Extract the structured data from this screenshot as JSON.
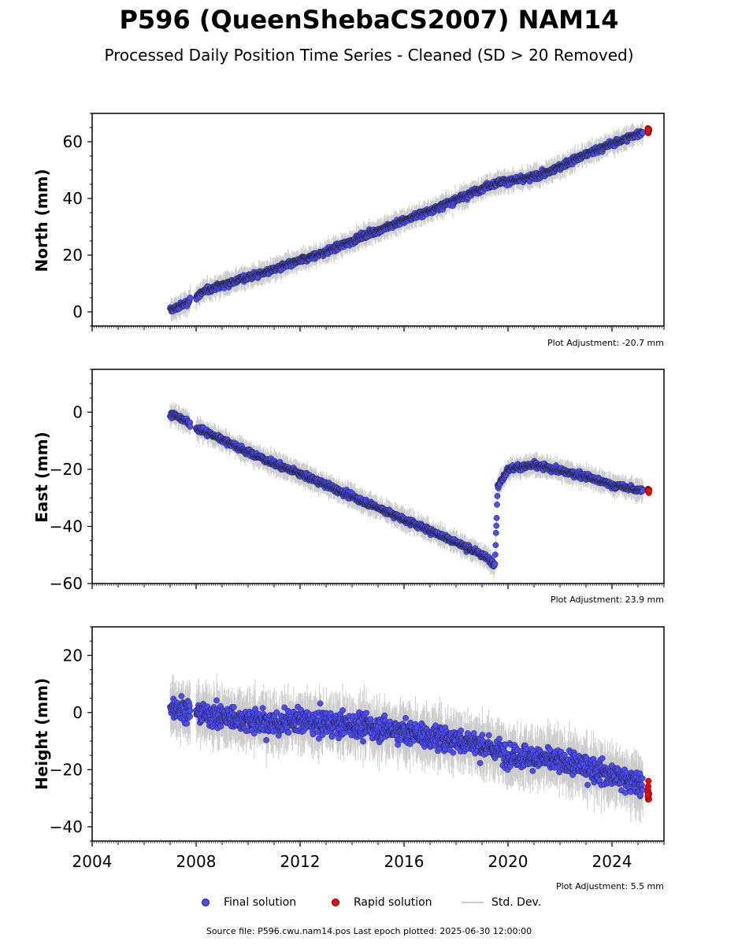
{
  "title": "P596 (QueenShebaCS2007) NAM14",
  "subtitle": "Processed Daily Position Time Series - Cleaned (SD > 20 Removed)",
  "legend": {
    "final": "Final solution",
    "rapid": "Rapid solution",
    "std": "Std. Dev."
  },
  "footer": "Source file: P596.cwu.nam14.pos  Last epoch plotted: 2025-06-30 12:00:00",
  "colors": {
    "final": "#4b4bff",
    "rapid": "#ff0000",
    "std": "#cccccc"
  },
  "chart_data": [
    {
      "type": "scatter",
      "ylabel": "North (mm)",
      "xlim": [
        2004,
        2026
      ],
      "ylim": [
        -5,
        70
      ],
      "yticks": [
        0,
        20,
        40,
        60
      ],
      "adjustment": "Plot Adjustment: -20.7 mm",
      "series": [
        {
          "name": "Final solution",
          "x": [
            2007.0,
            2007.5,
            2008.0,
            2008.5,
            2009.5,
            2010.5,
            2011.5,
            2012.5,
            2013.5,
            2014.5,
            2015.5,
            2016.5,
            2017.5,
            2018.5,
            2019.2,
            2019.8,
            2020.5,
            2021.5,
            2022.5,
            2023.5,
            2024.5,
            2025.2
          ],
          "y": [
            0.5,
            2.5,
            5.5,
            8,
            11,
            13.5,
            16.5,
            19.5,
            23,
            27,
            30.5,
            34,
            37.5,
            41.5,
            44.5,
            46,
            46.5,
            49,
            53.5,
            57.5,
            61,
            63.5
          ]
        },
        {
          "name": "Rapid solution",
          "x": [
            2025.4
          ],
          "y": [
            64
          ]
        }
      ]
    },
    {
      "type": "scatter",
      "ylabel": "East (mm)",
      "xlim": [
        2004,
        2026
      ],
      "ylim": [
        -60,
        15
      ],
      "yticks": [
        0,
        -20,
        -40,
        -60
      ],
      "adjustment": "Plot Adjustment: 23.9 mm",
      "series": [
        {
          "name": "Final solution",
          "x": [
            2007.0,
            2007.5,
            2008.0,
            2009.0,
            2010.0,
            2011.0,
            2012.0,
            2013.0,
            2014.0,
            2015.0,
            2016.0,
            2017.0,
            2018.0,
            2019.0,
            2019.5,
            2019.6,
            2020.0,
            2021.0,
            2022.0,
            2023.0,
            2024.0,
            2025.2
          ],
          "y": [
            -0.5,
            -2.5,
            -5.5,
            -9.5,
            -14,
            -18,
            -21.5,
            -25.5,
            -29.5,
            -33.5,
            -37.5,
            -41.5,
            -45.5,
            -50,
            -53,
            -26,
            -20,
            -18.5,
            -20.5,
            -22.5,
            -25.5,
            -27.5
          ]
        },
        {
          "name": "Rapid solution",
          "x": [
            2025.4
          ],
          "y": [
            -27.5
          ]
        }
      ]
    },
    {
      "type": "scatter",
      "ylabel": "Height (mm)",
      "xlim": [
        2004,
        2026
      ],
      "ylim": [
        -45,
        30
      ],
      "yticks": [
        20,
        0,
        -20,
        -40
      ],
      "xticks": [
        2004,
        2008,
        2012,
        2016,
        2020,
        2024
      ],
      "adjustment": "Plot Adjustment: 5.5 mm",
      "series": [
        {
          "name": "Final solution",
          "x": [
            2007.0,
            2007.5,
            2008.0,
            2009.0,
            2010.0,
            2011.0,
            2012.0,
            2013.0,
            2014.0,
            2015.0,
            2016.0,
            2017.0,
            2018.0,
            2019.0,
            2020.0,
            2021.0,
            2022.0,
            2023.0,
            2024.0,
            2025.2
          ],
          "y": [
            3,
            1,
            0,
            -1.5,
            -2.5,
            -4,
            -3,
            -4,
            -4.5,
            -5.5,
            -6.5,
            -8.5,
            -9.5,
            -11.5,
            -14.5,
            -16,
            -17,
            -19,
            -22,
            -25
          ]
        },
        {
          "name": "Rapid solution",
          "x": [
            2025.4
          ],
          "y": [
            -29
          ]
        }
      ]
    }
  ]
}
